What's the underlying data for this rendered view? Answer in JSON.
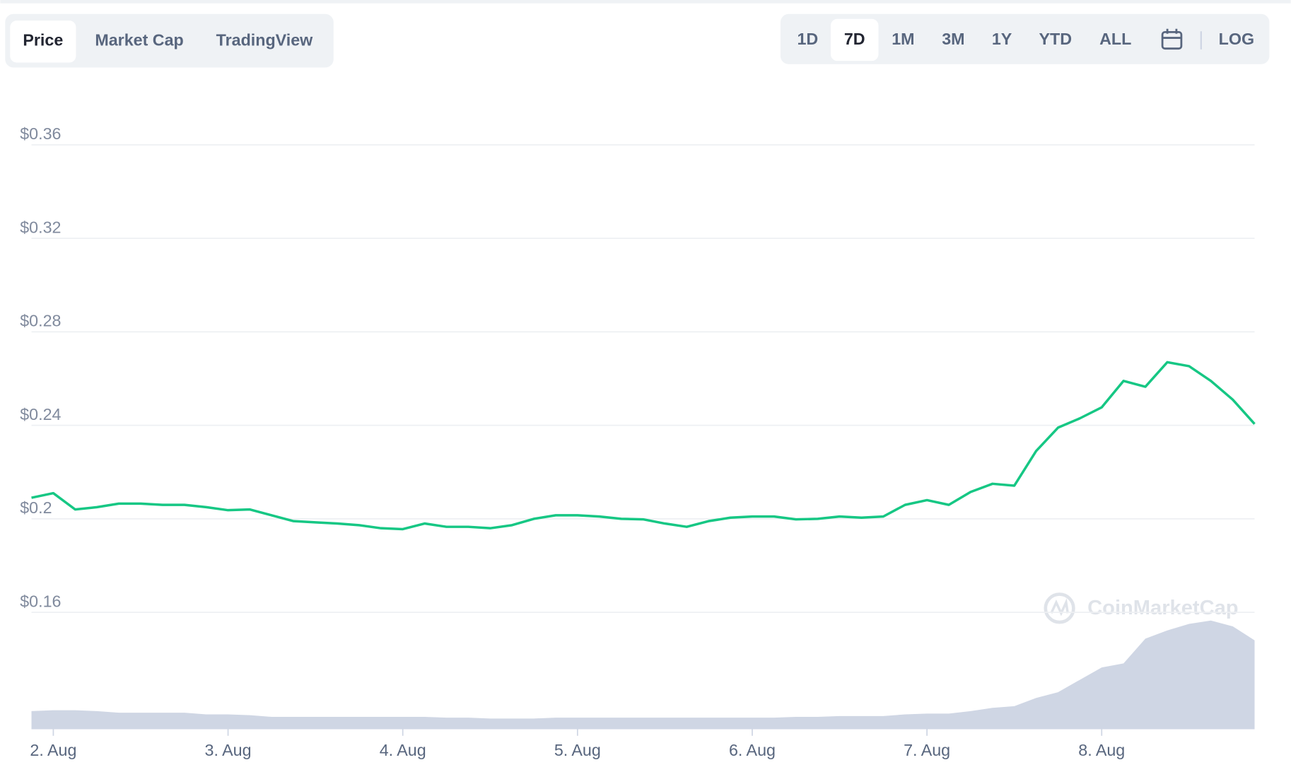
{
  "tabs": [
    {
      "label": "Price",
      "active": true
    },
    {
      "label": "Market Cap",
      "active": false
    },
    {
      "label": "TradingView",
      "active": false
    }
  ],
  "ranges": [
    {
      "label": "1D",
      "active": false
    },
    {
      "label": "7D",
      "active": true
    },
    {
      "label": "1M",
      "active": false
    },
    {
      "label": "3M",
      "active": false
    },
    {
      "label": "1Y",
      "active": false
    },
    {
      "label": "YTD",
      "active": false
    },
    {
      "label": "ALL",
      "active": false
    }
  ],
  "log_button": "LOG",
  "watermark": "CoinMarketCap",
  "chart_data": {
    "type": "line",
    "color": "#16c784",
    "volume_color": "#cfd6e4",
    "grid": true,
    "categories": [
      null,
      "2. Aug",
      null,
      null,
      null,
      null,
      null,
      null,
      null,
      "3. Aug",
      null,
      null,
      null,
      null,
      null,
      null,
      null,
      "4. Aug",
      null,
      null,
      null,
      null,
      null,
      null,
      null,
      "5. Aug",
      null,
      null,
      null,
      null,
      null,
      null,
      null,
      "6. Aug",
      null,
      null,
      null,
      null,
      null,
      null,
      null,
      "7. Aug",
      null,
      null,
      null,
      null,
      null,
      null,
      null,
      "8. Aug",
      null,
      null,
      null,
      null,
      null,
      null,
      null
    ],
    "values": [
      0.209,
      0.211,
      0.204,
      0.205,
      0.2065,
      0.2065,
      0.206,
      0.206,
      0.205,
      0.2037,
      0.204,
      0.2015,
      0.199,
      0.1985,
      0.198,
      0.1973,
      0.196,
      0.1956,
      0.198,
      0.1966,
      0.1966,
      0.196,
      0.1973,
      0.2,
      0.2015,
      0.2015,
      0.201,
      0.2,
      0.1998,
      0.198,
      0.1966,
      0.199,
      0.2005,
      0.201,
      0.201,
      0.1998,
      0.2,
      0.201,
      0.2005,
      0.201,
      0.206,
      0.208,
      0.206,
      0.2115,
      0.215,
      0.2142,
      0.229,
      0.239,
      0.243,
      0.2477,
      0.259,
      0.2565,
      0.267,
      0.2653,
      0.259,
      0.251,
      0.2406
    ],
    "volume": [
      22,
      23,
      23,
      22,
      20,
      20,
      20,
      20,
      18,
      18,
      17,
      15,
      15,
      15,
      15,
      15,
      15,
      15,
      15,
      14,
      14,
      13,
      13,
      13,
      14,
      14,
      14,
      14,
      14,
      14,
      14,
      14,
      14,
      14,
      14,
      15,
      15,
      16,
      16,
      16,
      18,
      19,
      19,
      22,
      26,
      28,
      38,
      45,
      60,
      75,
      80,
      110,
      120,
      128,
      132,
      125,
      108
    ],
    "ylim": [
      0.11,
      0.37
    ],
    "yticks": [
      {
        "value": 0.16,
        "label": "$0.16"
      },
      {
        "value": 0.2,
        "label": "$0.2"
      },
      {
        "value": 0.24,
        "label": "$0.24"
      },
      {
        "value": 0.28,
        "label": "$0.28"
      },
      {
        "value": 0.32,
        "label": "$0.32"
      },
      {
        "value": 0.36,
        "label": "$0.36"
      }
    ]
  }
}
